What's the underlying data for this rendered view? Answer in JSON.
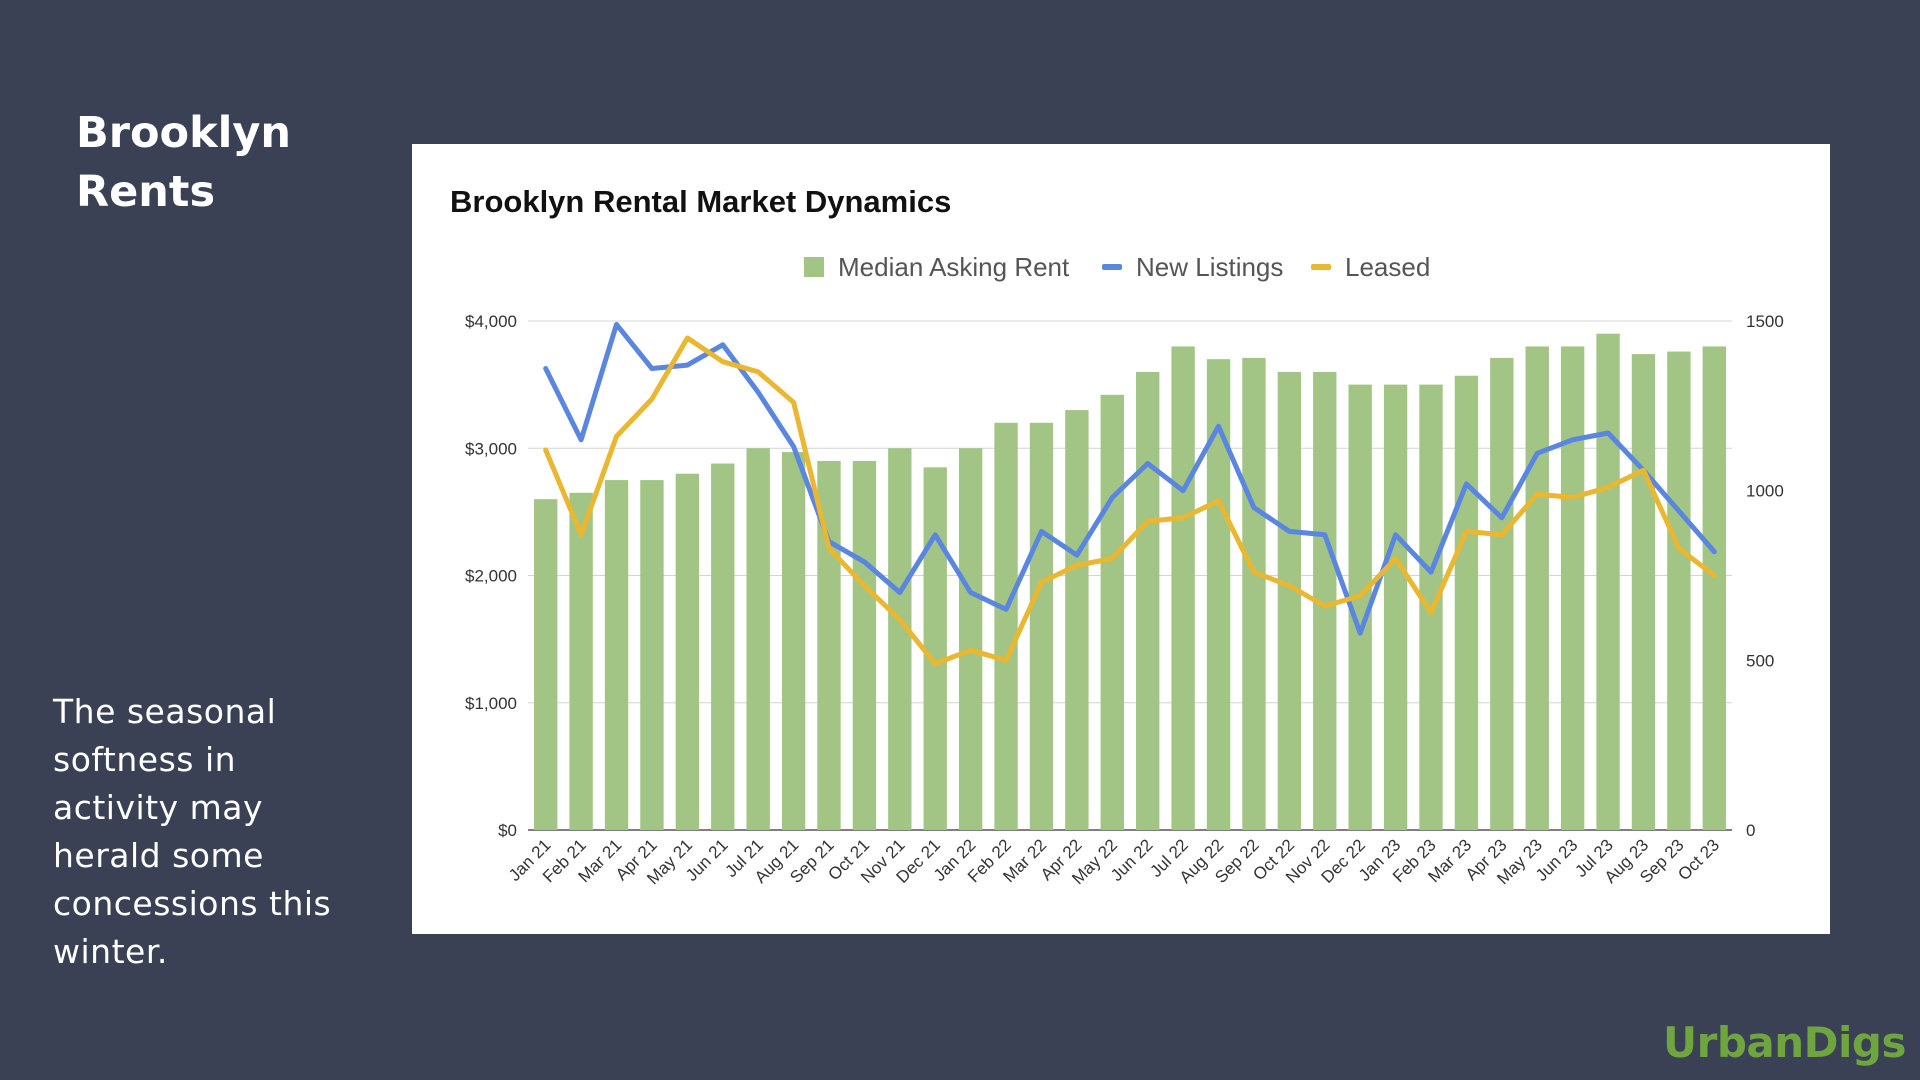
{
  "slide": {
    "title": "Brooklyn Rents",
    "note": "The seasonal softness in activity may herald some concessions this winter.",
    "brand": "UrbanDigs"
  },
  "colors": {
    "background": "#3a4154",
    "rent_bar": "#a2c585",
    "new_listings": "#5b86e0",
    "leased": "#e9b731",
    "brand": "#6fa53e"
  },
  "chart_data": {
    "type": "bar",
    "title": "Brooklyn Rental Market Dynamics",
    "xlabel": "",
    "ylabel": "",
    "categories": [
      "Jan 21",
      "Feb 21",
      "Mar 21",
      "Apr 21",
      "May 21",
      "Jun 21",
      "Jul 21",
      "Aug 21",
      "Sep 21",
      "Oct 21",
      "Nov 21",
      "Dec 21",
      "Jan 22",
      "Feb 22",
      "Mar 22",
      "Apr 22",
      "May 22",
      "Jun 22",
      "Jul 22",
      "Aug 22",
      "Sep 22",
      "Oct 22",
      "Nov 22",
      "Dec 22",
      "Jan 23",
      "Feb 23",
      "Mar 23",
      "Apr 23",
      "May 23",
      "Jun 23",
      "Jul 23",
      "Aug 23",
      "Sep 23",
      "Oct 23"
    ],
    "legend_position": "top",
    "grid": true,
    "left_axis": {
      "ylim": [
        0,
        4000
      ],
      "ticks": [
        0,
        1000,
        2000,
        3000,
        4000
      ],
      "tick_labels": [
        "$0",
        "$1,000",
        "$2,000",
        "$3,000",
        "$4,000"
      ]
    },
    "right_axis": {
      "ylim": [
        0,
        1500
      ],
      "ticks": [
        0,
        500,
        1000,
        1500
      ],
      "tick_labels": [
        "0",
        "500",
        "1000",
        "1500"
      ]
    },
    "series": [
      {
        "name": "Median Asking Rent",
        "type": "bar",
        "axis": "left",
        "values": [
          2600,
          2650,
          2750,
          2750,
          2800,
          2880,
          3000,
          2970,
          2900,
          2900,
          3000,
          2850,
          3000,
          3200,
          3200,
          3300,
          3420,
          3600,
          3800,
          3700,
          3710,
          3600,
          3600,
          3500,
          3500,
          3500,
          3570,
          3710,
          3800,
          3800,
          3900,
          3740,
          3760,
          3800
        ]
      },
      {
        "name": "New Listings",
        "type": "line",
        "axis": "right",
        "values": [
          1360,
          1150,
          1490,
          1360,
          1370,
          1430,
          1290,
          1130,
          850,
          790,
          700,
          870,
          700,
          650,
          880,
          810,
          980,
          1080,
          1000,
          1190,
          950,
          880,
          870,
          580,
          870,
          760,
          1020,
          920,
          1110,
          1150,
          1170,
          1060,
          940,
          820
        ]
      },
      {
        "name": "Leased",
        "type": "line",
        "axis": "right",
        "values": [
          1120,
          870,
          1160,
          1270,
          1450,
          1380,
          1350,
          1260,
          830,
          720,
          620,
          490,
          530,
          500,
          730,
          780,
          800,
          910,
          920,
          970,
          760,
          720,
          660,
          690,
          800,
          640,
          880,
          870,
          990,
          980,
          1010,
          1060,
          830,
          750
        ]
      }
    ]
  }
}
